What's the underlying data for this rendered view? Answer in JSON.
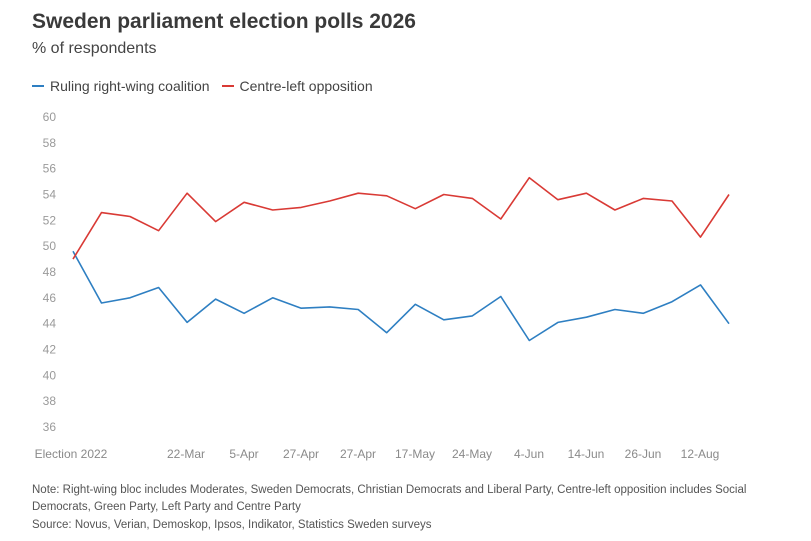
{
  "chart_data": {
    "type": "line",
    "title": "Sweden parliament election polls 2026",
    "subtitle": "% of respondents",
    "ylim": [
      36,
      60
    ],
    "yticks": [
      36,
      38,
      40,
      42,
      44,
      46,
      48,
      50,
      52,
      54,
      56,
      58,
      60
    ],
    "x_tick_labels": [
      "Election 2022",
      "22-Mar",
      "5-Apr",
      "27-Apr",
      "27-Apr",
      "17-May",
      "24-May",
      "4-Jun",
      "14-Jun",
      "26-Jun",
      "12-Aug"
    ],
    "grid": false,
    "legend_position": "top-left",
    "series": [
      {
        "name": "Ruling right-wing coalition",
        "color": "#2e7fc2",
        "values": [
          49.6,
          45.6,
          46.0,
          46.8,
          44.1,
          45.9,
          44.8,
          46.0,
          45.2,
          45.3,
          45.1,
          43.3,
          45.5,
          44.3,
          44.6,
          46.1,
          42.7,
          44.1,
          44.5,
          45.1,
          44.8,
          45.7,
          47.0,
          44.0
        ]
      },
      {
        "name": "Centre-left opposition",
        "color": "#d93a35",
        "values": [
          49.0,
          52.6,
          52.3,
          51.2,
          54.1,
          51.9,
          53.4,
          52.8,
          53.0,
          53.5,
          54.1,
          53.9,
          52.9,
          54.0,
          53.7,
          52.1,
          55.3,
          53.6,
          54.1,
          52.8,
          53.7,
          53.5,
          50.7,
          54.0
        ]
      }
    ]
  },
  "note": "Note: Right-wing bloc includes Moderates, Sweden Democrats, Christian Democrats and Liberal Party, Centre-left opposition includes Social Democrats, Green Party, Left Party and Centre Party",
  "source": "Source: Novus, Verian, Demoskop, Ipsos, Indikator, Statistics Sweden surveys"
}
